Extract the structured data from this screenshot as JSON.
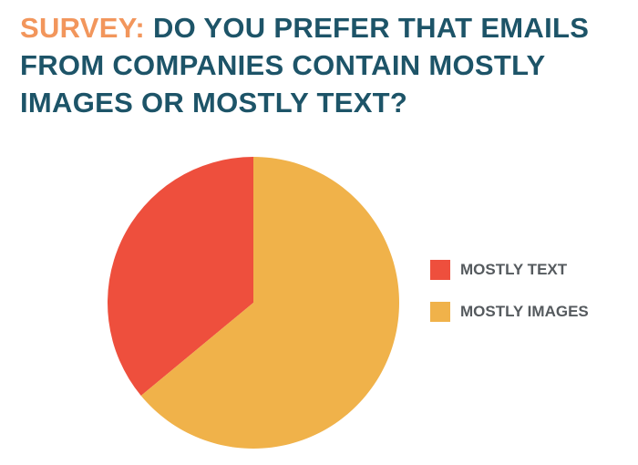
{
  "title": {
    "prefix": "SURVEY:",
    "text": "DO YOU PREFER THAT EMAILS FROM COMPANIES CONTAIN MOSTLY IMAGES OR MOSTLY TEXT?"
  },
  "colors": {
    "title_prefix": "#f2965c",
    "title_text": "#1d5468",
    "mostly_text": "#ee4f3d",
    "mostly_images": "#f0b24a"
  },
  "chart_data": {
    "type": "pie",
    "title": "SURVEY: DO YOU PREFER THAT EMAILS FROM COMPANIES CONTAIN MOSTLY IMAGES OR MOSTLY TEXT?",
    "legend_position": "right",
    "slices": [
      {
        "label": "MOSTLY TEXT",
        "value": 36,
        "color": "#ee4f3d"
      },
      {
        "label": "MOSTLY IMAGES",
        "value": 64,
        "color": "#f0b24a"
      }
    ]
  }
}
